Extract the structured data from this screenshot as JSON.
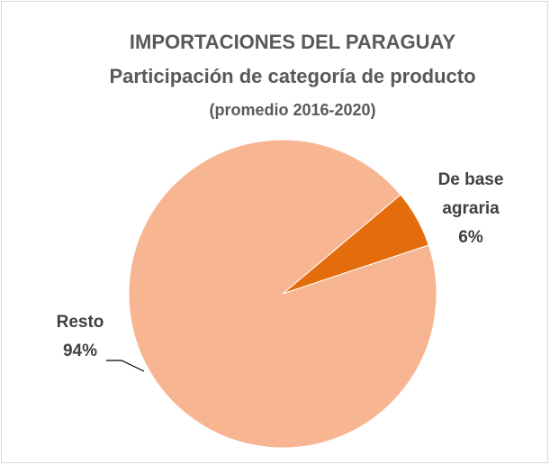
{
  "chart_data": {
    "type": "pie",
    "title": [
      "IMPORTACIONES DEL PARAGUAY",
      "Participación de categoría de producto",
      "(promedio 2016-2020)"
    ],
    "categories": [
      "De base agraria",
      "Resto"
    ],
    "values": [
      6,
      94
    ],
    "value_labels": [
      "6%",
      "94%"
    ],
    "colors": [
      "#e46c0a",
      "#f8b592"
    ]
  }
}
